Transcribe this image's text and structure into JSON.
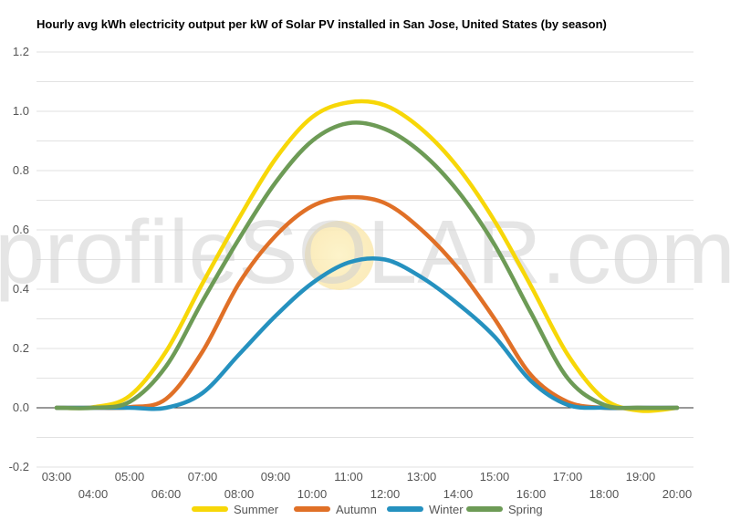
{
  "chart_data": {
    "type": "line",
    "title": "Hourly avg kWh electricity output per kW of Solar PV installed in San Jose, United States (by season)",
    "watermark": "profileSOLAR.com",
    "x": [
      "03:00",
      "04:00",
      "05:00",
      "06:00",
      "07:00",
      "08:00",
      "09:00",
      "10:00",
      "11:00",
      "12:00",
      "13:00",
      "14:00",
      "15:00",
      "16:00",
      "17:00",
      "18:00",
      "19:00",
      "20:00"
    ],
    "ylim": [
      -0.2,
      1.2
    ],
    "yticks": [
      "-0.2",
      "0.0",
      "0.2",
      "0.4",
      "0.6",
      "0.8",
      "1.0",
      "1.2"
    ],
    "grid": true,
    "legend_position": "bottom",
    "series": [
      {
        "name": "Summer",
        "color": "#f7d708",
        "values": [
          0,
          0.002,
          0.04,
          0.19,
          0.42,
          0.64,
          0.84,
          0.98,
          1.03,
          1.02,
          0.94,
          0.81,
          0.63,
          0.41,
          0.18,
          0.03,
          -0.01,
          0
        ]
      },
      {
        "name": "Autumn",
        "color": "#e07027",
        "values": [
          0,
          0,
          0.002,
          0.03,
          0.19,
          0.42,
          0.58,
          0.68,
          0.71,
          0.69,
          0.6,
          0.47,
          0.3,
          0.11,
          0.02,
          0,
          0,
          0
        ]
      },
      {
        "name": "Winter",
        "color": "#2591bf",
        "values": [
          0,
          0,
          0,
          0,
          0.05,
          0.18,
          0.31,
          0.42,
          0.49,
          0.5,
          0.44,
          0.35,
          0.24,
          0.09,
          0.01,
          0,
          0,
          0
        ]
      },
      {
        "name": "Spring",
        "color": "#6d9b56",
        "values": [
          0,
          0,
          0.02,
          0.14,
          0.36,
          0.57,
          0.76,
          0.9,
          0.96,
          0.94,
          0.86,
          0.73,
          0.55,
          0.32,
          0.1,
          0.01,
          0,
          0
        ]
      }
    ]
  }
}
